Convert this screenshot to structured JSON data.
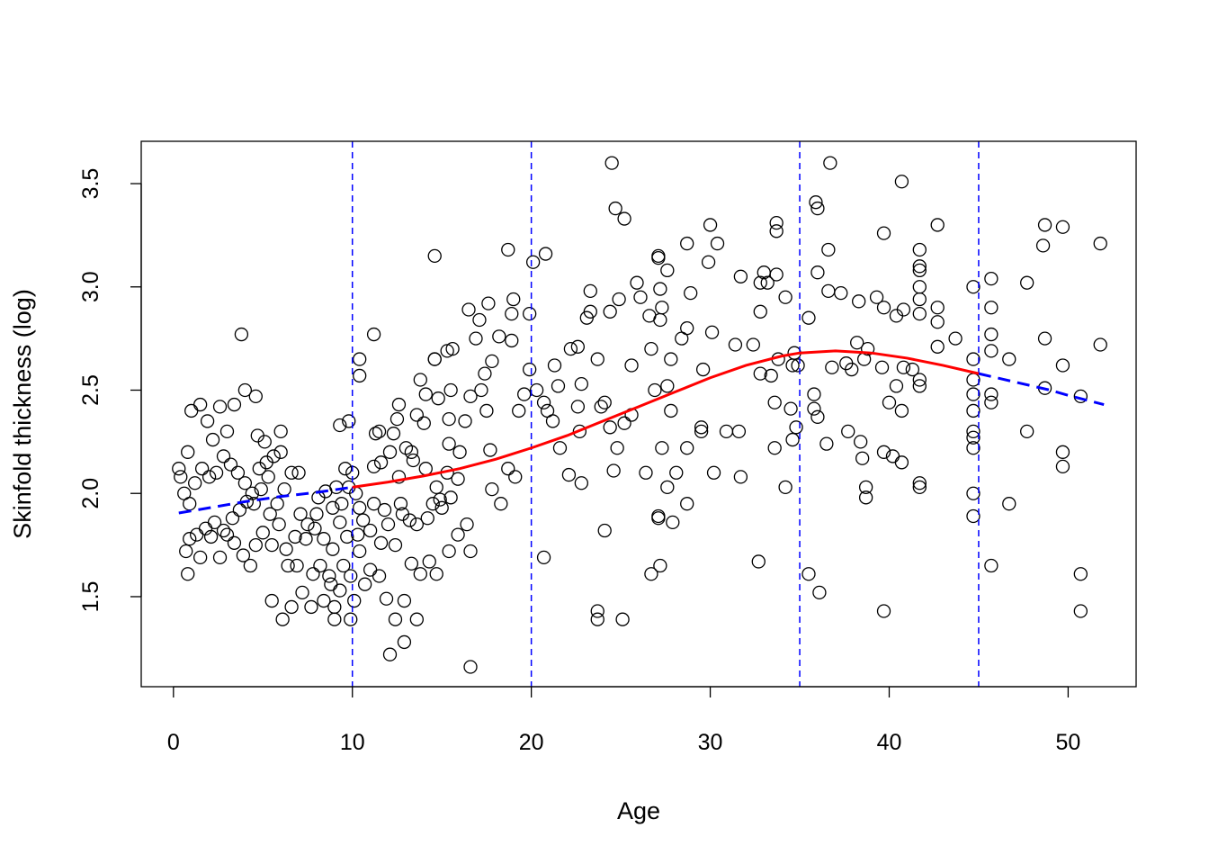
{
  "chart_data": {
    "type": "scatter",
    "title": "",
    "xlabel": "Age",
    "ylabel": "Skinfold thickness (log)",
    "xlim": [
      -1.8,
      53.8
    ],
    "ylim": [
      1.064,
      3.705
    ],
    "x_ticks": [
      0,
      10,
      20,
      30,
      40,
      50
    ],
    "y_ticks": [
      1.5,
      2.0,
      2.5,
      3.0,
      3.5
    ],
    "x_tick_labels": [
      "0",
      "10",
      "20",
      "30",
      "40",
      "50"
    ],
    "y_tick_labels": [
      "1.5",
      "2.0",
      "2.5",
      "3.0",
      "3.5"
    ],
    "grid": false,
    "knots": [
      10,
      20,
      35,
      45
    ],
    "knot_line_color": "#0000ff",
    "point_color": "#000000",
    "fit_colors": {
      "interior": "#ff0000",
      "boundary": "#0000ff"
    },
    "fit_curve": [
      [
        0.3,
        1.905
      ],
      [
        2,
        1.93
      ],
      [
        4,
        1.96
      ],
      [
        6,
        1.985
      ],
      [
        8,
        2.005
      ],
      [
        10,
        2.03
      ],
      [
        12,
        2.055
      ],
      [
        14,
        2.085
      ],
      [
        16,
        2.12
      ],
      [
        18,
        2.165
      ],
      [
        20,
        2.22
      ],
      [
        22,
        2.28
      ],
      [
        24,
        2.35
      ],
      [
        26,
        2.42
      ],
      [
        28,
        2.49
      ],
      [
        30,
        2.56
      ],
      [
        32,
        2.62
      ],
      [
        34,
        2.665
      ],
      [
        35,
        2.68
      ],
      [
        37,
        2.69
      ],
      [
        39,
        2.68
      ],
      [
        41,
        2.655
      ],
      [
        43,
        2.62
      ],
      [
        45,
        2.58
      ],
      [
        47,
        2.54
      ],
      [
        49,
        2.5
      ],
      [
        50,
        2.475
      ],
      [
        52,
        2.43
      ]
    ],
    "points": [
      [
        24.5,
        3.6
      ],
      [
        36.7,
        3.6
      ],
      [
        40.7,
        3.51
      ],
      [
        35.9,
        3.41
      ],
      [
        36,
        3.38
      ],
      [
        24.7,
        3.38
      ],
      [
        25.2,
        3.33
      ],
      [
        30,
        3.3
      ],
      [
        33.7,
        3.31
      ],
      [
        33.7,
        3.27
      ],
      [
        42.7,
        3.3
      ],
      [
        48.7,
        3.3
      ],
      [
        49.7,
        3.29
      ],
      [
        51.8,
        3.21
      ],
      [
        48.6,
        3.2
      ],
      [
        39.7,
        3.26
      ],
      [
        14.6,
        3.15
      ],
      [
        20.8,
        3.16
      ],
      [
        20.1,
        3.12
      ],
      [
        18.7,
        3.18
      ],
      [
        27.1,
        3.15
      ],
      [
        27.1,
        3.14
      ],
      [
        28.7,
        3.21
      ],
      [
        30.4,
        3.21
      ],
      [
        36.6,
        3.18
      ],
      [
        41.7,
        3.18
      ],
      [
        41.7,
        3.1
      ],
      [
        41.7,
        3.08
      ],
      [
        47.7,
        3.02
      ],
      [
        45.7,
        3.04
      ],
      [
        44.7,
        3.0
      ],
      [
        42.7,
        2.9
      ],
      [
        45.7,
        2.9
      ],
      [
        29.9,
        3.12
      ],
      [
        31.7,
        3.05
      ],
      [
        32.8,
        3.02
      ],
      [
        33.0,
        3.07
      ],
      [
        33.2,
        3.02
      ],
      [
        33.7,
        3.06
      ],
      [
        34.2,
        2.95
      ],
      [
        35.5,
        2.85
      ],
      [
        36.0,
        3.07
      ],
      [
        36.6,
        2.98
      ],
      [
        37.3,
        2.97
      ],
      [
        38.3,
        2.93
      ],
      [
        39.3,
        2.95
      ],
      [
        39.7,
        2.9
      ],
      [
        40.4,
        2.86
      ],
      [
        40.8,
        2.89
      ],
      [
        41.7,
        3.0
      ],
      [
        41.7,
        2.94
      ],
      [
        41.7,
        2.87
      ],
      [
        42.7,
        2.83
      ],
      [
        42.7,
        2.71
      ],
      [
        43.7,
        2.75
      ],
      [
        45.7,
        2.77
      ],
      [
        45.7,
        2.69
      ],
      [
        46.7,
        2.65
      ],
      [
        48.7,
        2.75
      ],
      [
        49.7,
        2.62
      ],
      [
        48.7,
        2.51
      ],
      [
        50.7,
        2.47
      ],
      [
        51.8,
        2.72
      ],
      [
        44.7,
        2.65
      ],
      [
        44.7,
        2.55
      ],
      [
        44.7,
        2.48
      ],
      [
        44.7,
        2.4
      ],
      [
        44.7,
        2.3
      ],
      [
        44.7,
        2.27
      ],
      [
        44.7,
        2.22
      ],
      [
        44.7,
        2.0
      ],
      [
        44.7,
        1.89
      ],
      [
        45.7,
        2.48
      ],
      [
        45.7,
        2.44
      ],
      [
        47.7,
        2.3
      ],
      [
        46.7,
        1.95
      ],
      [
        49.7,
        2.2
      ],
      [
        49.7,
        2.13
      ],
      [
        45.7,
        1.65
      ],
      [
        50.7,
        1.61
      ],
      [
        50.7,
        1.43
      ],
      [
        23.3,
        2.98
      ],
      [
        23.3,
        2.88
      ],
      [
        23.1,
        2.85
      ],
      [
        24.4,
        2.88
      ],
      [
        24.9,
        2.94
      ],
      [
        25.9,
        3.02
      ],
      [
        26.1,
        2.95
      ],
      [
        26.6,
        2.86
      ],
      [
        27.2,
        2.99
      ],
      [
        27.6,
        3.08
      ],
      [
        27.3,
        2.9
      ],
      [
        27.2,
        2.84
      ],
      [
        28.7,
        2.8
      ],
      [
        28.9,
        2.97
      ],
      [
        29.6,
        2.6
      ],
      [
        30.1,
        2.78
      ],
      [
        31.4,
        2.72
      ],
      [
        32.4,
        2.72
      ],
      [
        32.8,
        2.88
      ],
      [
        33.4,
        2.57
      ],
      [
        33.8,
        2.65
      ],
      [
        34.6,
        2.62
      ],
      [
        34.7,
        2.68
      ],
      [
        34.9,
        2.62
      ],
      [
        34.5,
        2.41
      ],
      [
        34.6,
        2.26
      ],
      [
        34.8,
        2.32
      ],
      [
        35.8,
        2.48
      ],
      [
        35.8,
        2.41
      ],
      [
        36.0,
        2.37
      ],
      [
        36.8,
        2.61
      ],
      [
        37.6,
        2.63
      ],
      [
        37.9,
        2.6
      ],
      [
        38.2,
        2.73
      ],
      [
        38.6,
        2.65
      ],
      [
        38.8,
        2.7
      ],
      [
        39.6,
        2.61
      ],
      [
        40.0,
        2.44
      ],
      [
        40.4,
        2.52
      ],
      [
        40.7,
        2.4
      ],
      [
        40.8,
        2.61
      ],
      [
        41.3,
        2.6
      ],
      [
        41.7,
        2.55
      ],
      [
        41.7,
        2.52
      ],
      [
        41.7,
        2.05
      ],
      [
        41.7,
        2.03
      ],
      [
        40.7,
        2.15
      ],
      [
        40.2,
        2.18
      ],
      [
        39.7,
        2.2
      ],
      [
        38.5,
        2.17
      ],
      [
        38.7,
        2.03
      ],
      [
        38.7,
        1.98
      ],
      [
        38.4,
        2.25
      ],
      [
        37.7,
        2.3
      ],
      [
        36.5,
        2.24
      ],
      [
        34.2,
        2.03
      ],
      [
        33.6,
        2.22
      ],
      [
        33.6,
        2.44
      ],
      [
        32.8,
        2.58
      ],
      [
        31.6,
        2.3
      ],
      [
        31.7,
        2.08
      ],
      [
        30.9,
        2.3
      ],
      [
        30.2,
        2.1
      ],
      [
        29.5,
        2.3
      ],
      [
        29.5,
        2.32
      ],
      [
        28.7,
        2.22
      ],
      [
        28.7,
        1.95
      ],
      [
        28.1,
        2.1
      ],
      [
        27.9,
        1.86
      ],
      [
        27.6,
        2.03
      ],
      [
        27.3,
        2.22
      ],
      [
        27.6,
        2.52
      ],
      [
        27.8,
        2.4
      ],
      [
        27.8,
        2.65
      ],
      [
        28.4,
        2.75
      ],
      [
        26.7,
        2.7
      ],
      [
        26.9,
        2.5
      ],
      [
        26.4,
        2.1
      ],
      [
        25.6,
        2.62
      ],
      [
        25.6,
        2.38
      ],
      [
        25.2,
        2.34
      ],
      [
        24.8,
        2.22
      ],
      [
        24.6,
        2.11
      ],
      [
        24.4,
        2.32
      ],
      [
        24.1,
        2.44
      ],
      [
        23.9,
        2.42
      ],
      [
        23.7,
        2.65
      ],
      [
        22.8,
        2.53
      ],
      [
        22.7,
        2.3
      ],
      [
        22.8,
        2.05
      ],
      [
        22.1,
        2.09
      ],
      [
        21.6,
        2.22
      ],
      [
        21.5,
        2.52
      ],
      [
        21.3,
        2.62
      ],
      [
        22.6,
        2.42
      ],
      [
        22.6,
        2.71
      ],
      [
        22.2,
        2.7
      ],
      [
        21.2,
        2.35
      ],
      [
        20.7,
        2.44
      ],
      [
        20.9,
        2.4
      ],
      [
        20.3,
        2.5
      ],
      [
        19.9,
        2.6
      ],
      [
        19.3,
        2.4
      ],
      [
        19.6,
        2.48
      ],
      [
        19.1,
        2.08
      ],
      [
        18.7,
        2.12
      ],
      [
        18.3,
        1.95
      ],
      [
        17.8,
        2.02
      ],
      [
        17.7,
        2.21
      ],
      [
        17.5,
        2.4
      ],
      [
        17.4,
        2.58
      ],
      [
        17.2,
        2.5
      ],
      [
        17.8,
        2.64
      ],
      [
        18.2,
        2.76
      ],
      [
        18.9,
        2.74
      ],
      [
        19.0,
        2.94
      ],
      [
        18.9,
        2.87
      ],
      [
        19.9,
        2.87
      ],
      [
        17.6,
        2.92
      ],
      [
        17.1,
        2.84
      ],
      [
        16.9,
        2.75
      ],
      [
        16.5,
        2.89
      ],
      [
        16.6,
        2.47
      ],
      [
        16.3,
        2.35
      ],
      [
        16.0,
        2.2
      ],
      [
        15.9,
        2.07
      ],
      [
        15.5,
        1.98
      ],
      [
        15.3,
        2.1
      ],
      [
        15.4,
        2.24
      ],
      [
        15.4,
        2.36
      ],
      [
        15.5,
        2.5
      ],
      [
        15.6,
        2.7
      ],
      [
        15.3,
        2.69
      ],
      [
        14.6,
        2.65
      ],
      [
        14.8,
        2.46
      ],
      [
        14.1,
        2.48
      ],
      [
        13.8,
        2.55
      ],
      [
        14.0,
        2.34
      ],
      [
        13.6,
        2.38
      ],
      [
        13.3,
        2.2
      ],
      [
        13.0,
        2.22
      ],
      [
        12.6,
        2.43
      ],
      [
        12.5,
        2.36
      ],
      [
        12.3,
        2.29
      ],
      [
        12.1,
        2.2
      ],
      [
        11.5,
        2.3
      ],
      [
        11.3,
        2.29
      ],
      [
        11.6,
        2.15
      ],
      [
        11.2,
        2.13
      ],
      [
        12.6,
        2.08
      ],
      [
        13.4,
        2.16
      ],
      [
        14.1,
        2.12
      ],
      [
        14.7,
        2.03
      ],
      [
        15.0,
        1.93
      ],
      [
        15.9,
        1.8
      ],
      [
        16.4,
        1.85
      ],
      [
        16.6,
        1.72
      ],
      [
        16.6,
        1.16
      ],
      [
        15.4,
        1.72
      ],
      [
        14.7,
        1.61
      ],
      [
        14.3,
        1.67
      ],
      [
        13.8,
        1.61
      ],
      [
        13.6,
        1.39
      ],
      [
        13.3,
        1.66
      ],
      [
        12.9,
        1.48
      ],
      [
        12.9,
        1.28
      ],
      [
        12.4,
        1.39
      ],
      [
        12.1,
        1.22
      ],
      [
        11.9,
        1.49
      ],
      [
        11.5,
        1.6
      ],
      [
        11.0,
        1.63
      ],
      [
        10.7,
        1.56
      ],
      [
        10.4,
        1.72
      ],
      [
        10.1,
        1.48
      ],
      [
        9.9,
        1.39
      ],
      [
        9.9,
        1.6
      ],
      [
        9.5,
        1.65
      ],
      [
        9.3,
        1.53
      ],
      [
        9.0,
        1.39
      ],
      [
        9.0,
        1.45
      ],
      [
        8.8,
        1.56
      ],
      [
        8.7,
        1.6
      ],
      [
        8.4,
        1.48
      ],
      [
        8.2,
        1.65
      ],
      [
        7.8,
        1.61
      ],
      [
        7.7,
        1.45
      ],
      [
        7.2,
        1.52
      ],
      [
        6.9,
        1.65
      ],
      [
        6.6,
        1.45
      ],
      [
        6.1,
        1.39
      ],
      [
        6.4,
        1.65
      ],
      [
        5.5,
        1.48
      ],
      [
        5.5,
        1.75
      ],
      [
        5.9,
        1.85
      ],
      [
        6.3,
        1.73
      ],
      [
        6.8,
        1.79
      ],
      [
        7.4,
        1.78
      ],
      [
        7.9,
        1.83
      ],
      [
        8.4,
        1.78
      ],
      [
        8.9,
        1.73
      ],
      [
        9.3,
        1.86
      ],
      [
        9.7,
        1.79
      ],
      [
        10.3,
        1.8
      ],
      [
        10.6,
        1.87
      ],
      [
        11.0,
        1.82
      ],
      [
        11.6,
        1.76
      ],
      [
        12.0,
        1.85
      ],
      [
        12.4,
        1.75
      ],
      [
        12.8,
        1.9
      ],
      [
        13.2,
        1.87
      ],
      [
        13.6,
        1.85
      ],
      [
        14.2,
        1.88
      ],
      [
        14.5,
        1.95
      ],
      [
        14.9,
        1.97
      ],
      [
        12.7,
        1.95
      ],
      [
        11.8,
        1.92
      ],
      [
        11.2,
        1.95
      ],
      [
        10.4,
        1.93
      ],
      [
        10.2,
        2.0
      ],
      [
        10.0,
        2.1
      ],
      [
        9.8,
        2.03
      ],
      [
        9.6,
        2.12
      ],
      [
        9.4,
        1.95
      ],
      [
        9.1,
        2.03
      ],
      [
        8.9,
        1.93
      ],
      [
        8.5,
        2.01
      ],
      [
        8.1,
        1.98
      ],
      [
        7.5,
        1.85
      ],
      [
        7.1,
        1.9
      ],
      [
        6.6,
        2.1
      ],
      [
        6.2,
        2.02
      ],
      [
        5.8,
        1.95
      ],
      [
        5.4,
        1.9
      ],
      [
        5.0,
        1.81
      ],
      [
        4.6,
        1.75
      ],
      [
        4.3,
        1.65
      ],
      [
        3.9,
        1.7
      ],
      [
        3.4,
        1.76
      ],
      [
        3.0,
        1.8
      ],
      [
        2.6,
        1.69
      ],
      [
        2.1,
        1.79
      ],
      [
        1.5,
        1.69
      ],
      [
        0.8,
        1.61
      ],
      [
        0.7,
        1.72
      ],
      [
        0.9,
        1.78
      ],
      [
        1.3,
        1.8
      ],
      [
        1.8,
        1.83
      ],
      [
        2.3,
        1.86
      ],
      [
        2.8,
        1.82
      ],
      [
        3.3,
        1.88
      ],
      [
        3.7,
        1.92
      ],
      [
        4.1,
        1.96
      ],
      [
        4.5,
        1.95
      ],
      [
        4.9,
        2.02
      ],
      [
        5.3,
        2.08
      ],
      [
        5.6,
        2.18
      ],
      [
        5.1,
        2.25
      ],
      [
        4.7,
        2.28
      ],
      [
        4.6,
        2.47
      ],
      [
        4.0,
        2.5
      ],
      [
        3.8,
        2.77
      ],
      [
        3.4,
        2.43
      ],
      [
        3.0,
        2.3
      ],
      [
        2.6,
        2.42
      ],
      [
        2.2,
        2.26
      ],
      [
        1.9,
        2.35
      ],
      [
        1.5,
        2.43
      ],
      [
        1.0,
        2.4
      ],
      [
        0.8,
        2.2
      ],
      [
        0.4,
        2.08
      ],
      [
        0.3,
        2.12
      ],
      [
        0.6,
        2.0
      ],
      [
        0.9,
        1.95
      ],
      [
        1.2,
        2.05
      ],
      [
        1.6,
        2.12
      ],
      [
        2.0,
        2.08
      ],
      [
        2.4,
        2.1
      ],
      [
        2.8,
        2.18
      ],
      [
        3.2,
        2.14
      ],
      [
        3.6,
        2.1
      ],
      [
        4.0,
        2.05
      ],
      [
        4.4,
        2.0
      ],
      [
        4.8,
        2.12
      ],
      [
        5.2,
        2.15
      ],
      [
        6.0,
        2.2
      ],
      [
        6.0,
        2.3
      ],
      [
        7.0,
        2.1
      ],
      [
        8.0,
        1.9
      ],
      [
        9.3,
        2.33
      ],
      [
        9.8,
        2.35
      ],
      [
        10.4,
        2.57
      ],
      [
        10.4,
        2.65
      ],
      [
        11.2,
        2.77
      ],
      [
        14.6,
        2.65
      ],
      [
        20.7,
        1.69
      ],
      [
        23.7,
        1.43
      ],
      [
        23.7,
        1.39
      ],
      [
        25.1,
        1.39
      ],
      [
        24.1,
        1.82
      ],
      [
        26.7,
        1.61
      ],
      [
        27.2,
        1.65
      ],
      [
        27.1,
        1.89
      ],
      [
        27.1,
        1.88
      ],
      [
        32.7,
        1.67
      ],
      [
        35.5,
        1.61
      ],
      [
        36.1,
        1.52
      ],
      [
        39.7,
        1.43
      ]
    ]
  }
}
